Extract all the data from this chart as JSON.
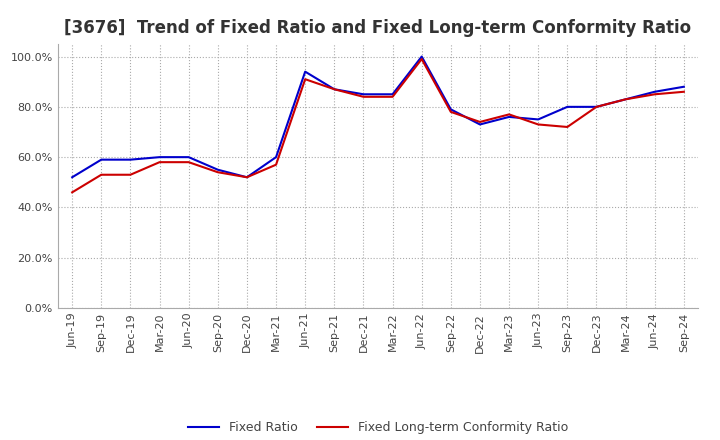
{
  "title": "[3676]  Trend of Fixed Ratio and Fixed Long-term Conformity Ratio",
  "x_labels": [
    "Jun-19",
    "Sep-19",
    "Dec-19",
    "Mar-20",
    "Jun-20",
    "Sep-20",
    "Dec-20",
    "Mar-21",
    "Jun-21",
    "Sep-21",
    "Dec-21",
    "Mar-22",
    "Jun-22",
    "Sep-22",
    "Dec-22",
    "Mar-23",
    "Jun-23",
    "Sep-23",
    "Dec-23",
    "Mar-24",
    "Jun-24",
    "Sep-24"
  ],
  "fixed_ratio": [
    0.52,
    0.59,
    0.59,
    0.6,
    0.6,
    0.55,
    0.52,
    0.6,
    0.94,
    0.87,
    0.85,
    0.85,
    1.0,
    0.79,
    0.73,
    0.76,
    0.75,
    0.8,
    0.8,
    0.83,
    0.86,
    0.88
  ],
  "fixed_lt_ratio": [
    0.46,
    0.53,
    0.53,
    0.58,
    0.58,
    0.54,
    0.52,
    0.57,
    0.91,
    0.87,
    0.84,
    0.84,
    0.99,
    0.78,
    0.74,
    0.77,
    0.73,
    0.72,
    0.8,
    0.83,
    0.85,
    0.86
  ],
  "fixed_ratio_color": "#0000cc",
  "fixed_lt_ratio_color": "#cc0000",
  "ylim": [
    0.0,
    1.05
  ],
  "yticks": [
    0.0,
    0.2,
    0.4,
    0.6,
    0.8,
    1.0
  ],
  "background_color": "#ffffff",
  "grid_color": "#aaaaaa",
  "title_fontsize": 12,
  "legend_labels": [
    "Fixed Ratio",
    "Fixed Long-term Conformity Ratio"
  ]
}
